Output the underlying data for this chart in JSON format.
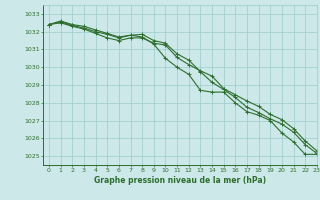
{
  "title": "Graphe pression niveau de la mer (hPa)",
  "bg_color": "#cce8e8",
  "grid_color": "#99cccc",
  "line_color": "#2d6e2d",
  "marker_color": "#2d6e2d",
  "xlim": [
    -0.5,
    23
  ],
  "ylim": [
    1024.5,
    1033.5
  ],
  "yticks": [
    1025,
    1026,
    1027,
    1028,
    1029,
    1030,
    1031,
    1032,
    1033
  ],
  "xticks": [
    0,
    1,
    2,
    3,
    4,
    5,
    6,
    7,
    8,
    9,
    10,
    11,
    12,
    13,
    14,
    15,
    16,
    17,
    18,
    19,
    20,
    21,
    22,
    23
  ],
  "series1": [
    1032.4,
    1032.6,
    1032.4,
    1032.3,
    1032.1,
    1031.9,
    1031.7,
    1031.8,
    1031.7,
    1031.3,
    1030.5,
    1030.0,
    1029.6,
    1028.7,
    1028.6,
    1028.6,
    1028.0,
    1027.5,
    1027.3,
    1027.0,
    1026.3,
    1025.8,
    1025.1,
    1025.1
  ],
  "series2": [
    1032.4,
    1032.55,
    1032.35,
    1032.2,
    1032.0,
    1031.85,
    1031.65,
    1031.8,
    1031.85,
    1031.5,
    1031.35,
    1030.75,
    1030.4,
    1029.75,
    1029.15,
    1028.75,
    1028.3,
    1027.75,
    1027.45,
    1027.1,
    1026.8,
    1026.35,
    1025.65,
    1025.15
  ],
  "series3": [
    1032.4,
    1032.5,
    1032.3,
    1032.15,
    1031.9,
    1031.65,
    1031.5,
    1031.65,
    1031.65,
    1031.35,
    1031.25,
    1030.55,
    1030.15,
    1029.8,
    1029.5,
    1028.8,
    1028.45,
    1028.1,
    1027.8,
    1027.35,
    1027.05,
    1026.55,
    1025.85,
    1025.3
  ]
}
